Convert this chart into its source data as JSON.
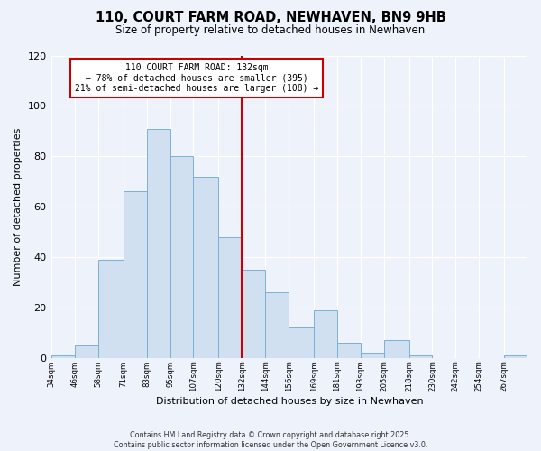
{
  "title": "110, COURT FARM ROAD, NEWHAVEN, BN9 9HB",
  "subtitle": "Size of property relative to detached houses in Newhaven",
  "xlabel": "Distribution of detached houses by size in Newhaven",
  "ylabel": "Number of detached properties",
  "bar_color": "#d0e0f0",
  "bar_edge_color": "#7ab0d4",
  "background_color": "#eef2fb",
  "grid_color": "#ffffff",
  "vline_x": 132,
  "vline_color": "#cc0000",
  "annotation_title": "110 COURT FARM ROAD: 132sqm",
  "annotation_line1": "← 78% of detached houses are smaller (395)",
  "annotation_line2": "21% of semi-detached houses are larger (108) →",
  "footnote1": "Contains HM Land Registry data © Crown copyright and database right 2025.",
  "footnote2": "Contains public sector information licensed under the Open Government Licence v3.0.",
  "bins": [
    34,
    46,
    58,
    71,
    83,
    95,
    107,
    120,
    132,
    144,
    156,
    169,
    181,
    193,
    205,
    218,
    230,
    242,
    254,
    267,
    279
  ],
  "counts": [
    1,
    5,
    39,
    66,
    91,
    80,
    72,
    48,
    35,
    26,
    12,
    19,
    6,
    2,
    7,
    1,
    0,
    0,
    0,
    1
  ],
  "ylim": [
    0,
    120
  ],
  "yticks": [
    0,
    20,
    40,
    60,
    80,
    100,
    120
  ]
}
